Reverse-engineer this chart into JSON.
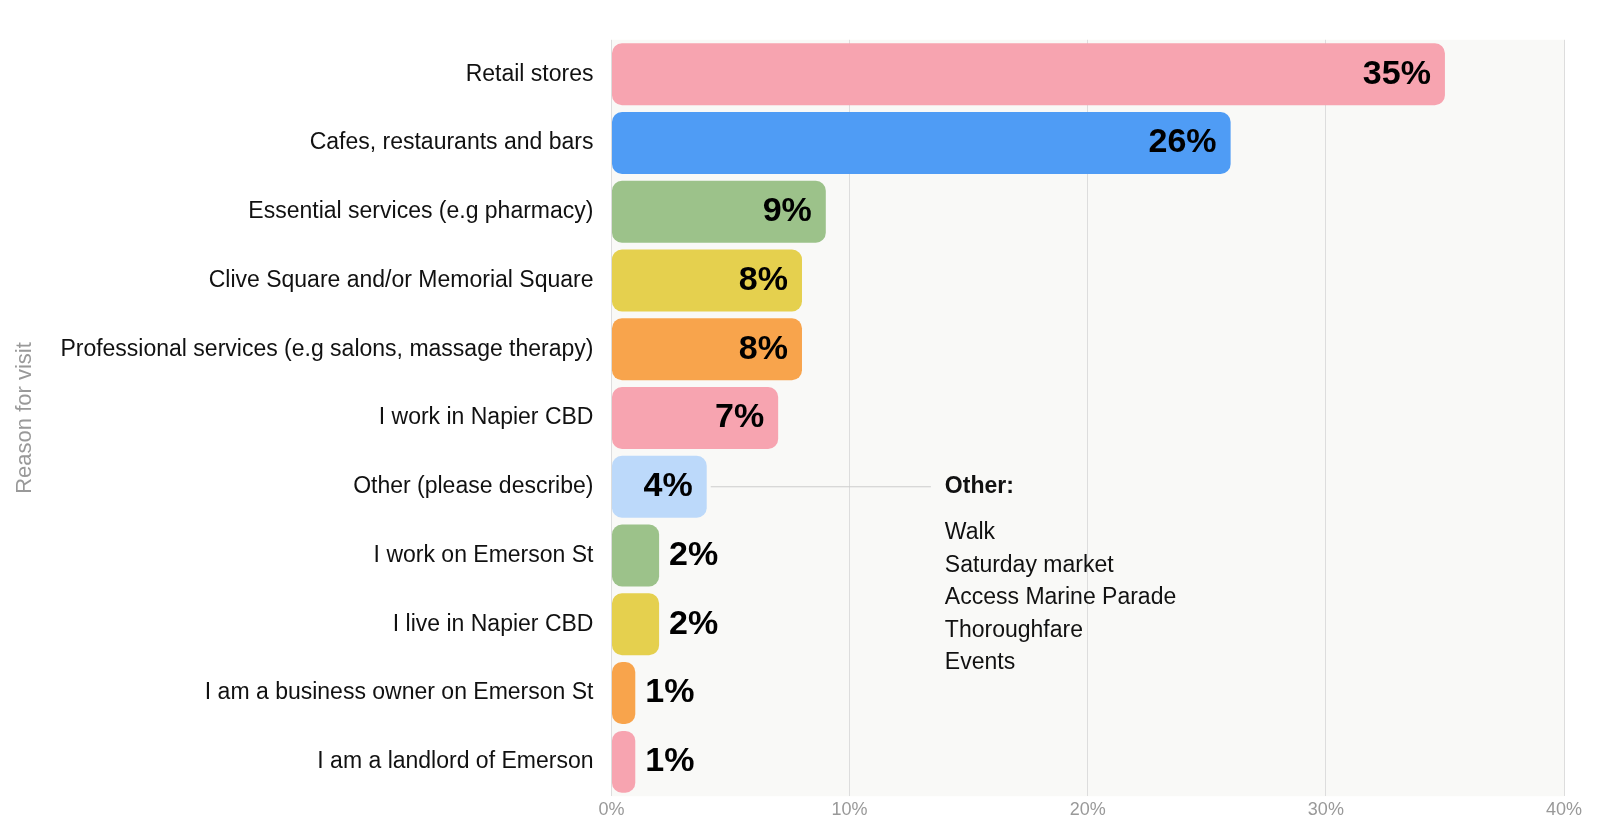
{
  "chart_data": {
    "type": "bar",
    "orientation": "horizontal",
    "ylabel": "Reason for visit",
    "categories": [
      "Retail stores",
      "Cafes, restaurants and bars",
      "Essential services (e.g pharmacy)",
      "Clive Square and/or Memorial Square",
      "Professional services (e.g salons, massage therapy)",
      "I work in Napier CBD",
      "Other (please describe)",
      "I work on Emerson St",
      "I live in Napier CBD",
      "I am a business owner on Emerson St",
      "I am a landlord of Emerson"
    ],
    "values": [
      35,
      26,
      9,
      8,
      8,
      7,
      4,
      2,
      2,
      1,
      1
    ],
    "value_labels": [
      "35%",
      "26%",
      "9%",
      "8%",
      "8%",
      "7%",
      "4%",
      "2%",
      "2%",
      "1%",
      "1%"
    ],
    "colors": [
      "#f7a4b0",
      "#4f9cf5",
      "#9cc28a",
      "#e5d04e",
      "#f8a44c",
      "#f7a4b0",
      "#bcd9fa",
      "#9cc28a",
      "#e5d04e",
      "#f8a44c",
      "#f7a4b0"
    ],
    "xlim": [
      0,
      40
    ],
    "xticks": [
      {
        "value": 0,
        "label": "0%"
      },
      {
        "value": 10,
        "label": "10%"
      },
      {
        "value": 20,
        "label": "20%"
      },
      {
        "value": 30,
        "label": "30%"
      },
      {
        "value": 40,
        "label": "40%"
      }
    ],
    "grid": "x",
    "annotations": [
      {
        "text": "Other:\nWalk\nSaturday market\nAccess Marine Parade\nThoroughfare\nEvents",
        "x": 4,
        "y": "Other (please describe)"
      }
    ]
  }
}
